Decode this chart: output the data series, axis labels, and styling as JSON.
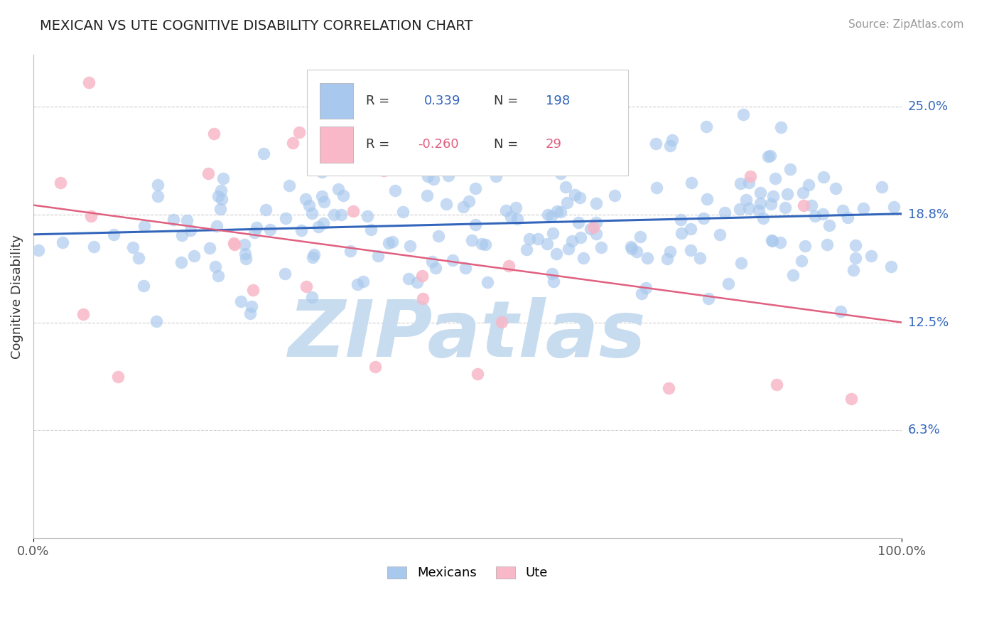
{
  "title": "MEXICAN VS UTE COGNITIVE DISABILITY CORRELATION CHART",
  "source": "Source: ZipAtlas.com",
  "ylabel": "Cognitive Disability",
  "blue_R": 0.339,
  "blue_N": 198,
  "pink_R": -0.26,
  "pink_N": 29,
  "blue_color": "#A8C8EE",
  "blue_line_color": "#3366BB",
  "pink_color": "#F8B8C8",
  "pink_line_color": "#E06080",
  "ytick_vals": [
    0.0625,
    0.125,
    0.1875,
    0.25
  ],
  "ytick_labels": [
    "6.3%",
    "12.5%",
    "18.8%",
    "25.0%"
  ],
  "xlim": [
    0.0,
    1.0
  ],
  "ylim": [
    0.0,
    0.28
  ],
  "blue_line_y_start": 0.176,
  "blue_line_y_end": 0.188,
  "pink_line_y_start": 0.193,
  "pink_line_y_end": 0.125,
  "background_color": "#ffffff",
  "grid_color": "#cccccc",
  "title_color": "#333333",
  "source_color": "#999999",
  "watermark_text": "ZIPatlas",
  "watermark_color": "#C8DCF0",
  "legend_blue_label": "Mexicans",
  "legend_pink_label": "Ute",
  "legend_R_blue": "0.339",
  "legend_R_pink": "-0.260",
  "legend_N_blue": "198",
  "legend_N_pink": "29"
}
